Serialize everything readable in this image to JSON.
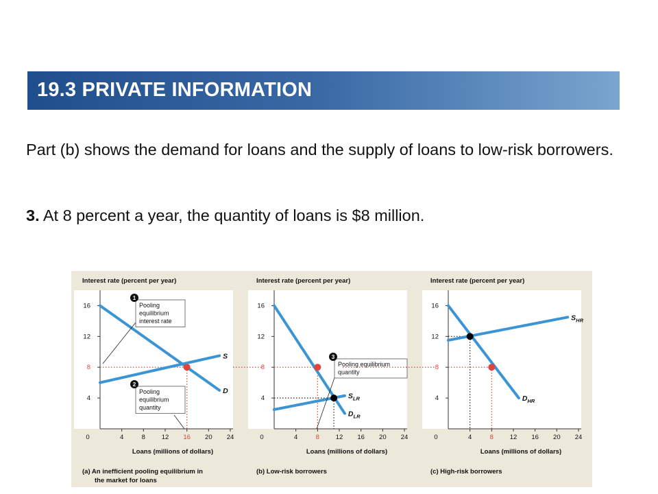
{
  "header": {
    "title": "19.3 PRIVATE INFORMATION"
  },
  "text": {
    "para1": "Part (b) shows the demand for loans and the supply of loans to low-risk borrowers.",
    "para2_bold": "3.",
    "para2_rest": " At 8 percent a year, the quantity of loans is $8 million."
  },
  "colors": {
    "banner_start": "#1f4e8c",
    "banner_end": "#7aa5cf",
    "curve": "#3b95d4",
    "highlight": "#e0443a",
    "figure_bg": "#ece8da",
    "panel_bg": "#ffffff"
  },
  "chart_data": [
    {
      "type": "line",
      "panel": "(a)",
      "caption_line1": "(a) An inefficient pooling equilibrium in",
      "caption_line2": "the market for loans",
      "ylabel": "Interest rate (percent per year)",
      "xlabel": "Loans (millions of dollars)",
      "xticks": [
        "0",
        "4",
        "8",
        "12",
        "16",
        "20",
        "24"
      ],
      "yticks": [
        "4",
        "8",
        "12",
        "16"
      ],
      "xlim": [
        0,
        24
      ],
      "ylim": [
        0,
        18
      ],
      "series": [
        {
          "name": "D",
          "x": [
            0,
            22
          ],
          "y": [
            16,
            5
          ]
        },
        {
          "name": "S",
          "x": [
            0,
            22
          ],
          "y": [
            6,
            9.5
          ]
        }
      ],
      "equilibrium": {
        "x": 16,
        "y": 8
      },
      "callouts": [
        {
          "num": "1",
          "lines": [
            "Pooling",
            "equilibrium",
            "interest rate"
          ]
        },
        {
          "num": "2",
          "lines": [
            "Pooling",
            "equilibrium",
            "quantity"
          ]
        }
      ],
      "highlight_x_tick": "16",
      "highlight_y_tick": "8"
    },
    {
      "type": "line",
      "panel": "(b)",
      "caption_line1": "(b) Low-risk borrowers",
      "ylabel": "Interest rate (percent per year)",
      "xlabel": "Loans (millions of dollars)",
      "xticks": [
        "0",
        "4",
        "8",
        "12",
        "16",
        "20",
        "24"
      ],
      "yticks": [
        "4",
        "8",
        "12",
        "16"
      ],
      "xlim": [
        0,
        24
      ],
      "ylim": [
        0,
        18
      ],
      "series": [
        {
          "name": "D",
          "subscript": "LR",
          "x": [
            0,
            13
          ],
          "y": [
            16,
            2
          ]
        },
        {
          "name": "S",
          "subscript": "LR",
          "x": [
            0,
            13
          ],
          "y": [
            2.5,
            4.3
          ]
        }
      ],
      "market_point": {
        "x": 11,
        "y": 4
      },
      "pooling_point": {
        "x": 8,
        "y": 8
      },
      "callouts": [
        {
          "num": "3",
          "lines": [
            "Pooling equilibrium",
            "quantity"
          ]
        }
      ],
      "highlight_x_tick": "8",
      "highlight_y_tick": "8"
    },
    {
      "type": "line",
      "panel": "(c)",
      "caption_line1": "(c) High-risk borrowers",
      "ylabel": "Interest rate (percent per year)",
      "xlabel": "Loans (millions of dollars)",
      "xticks": [
        "0",
        "4",
        "8",
        "12",
        "16",
        "20",
        "24"
      ],
      "yticks": [
        "4",
        "8",
        "12",
        "16"
      ],
      "xlim": [
        0,
        24
      ],
      "ylim": [
        0,
        18
      ],
      "series": [
        {
          "name": "D",
          "subscript": "HR",
          "x": [
            0,
            13
          ],
          "y": [
            16,
            4
          ]
        },
        {
          "name": "S",
          "subscript": "HR",
          "x": [
            0,
            22
          ],
          "y": [
            11.5,
            14.5
          ]
        }
      ],
      "market_point": {
        "x": 4,
        "y": 12
      },
      "pooling_point": {
        "x": 8,
        "y": 8
      },
      "highlight_x_tick": "8",
      "highlight_y_tick": "8"
    }
  ]
}
